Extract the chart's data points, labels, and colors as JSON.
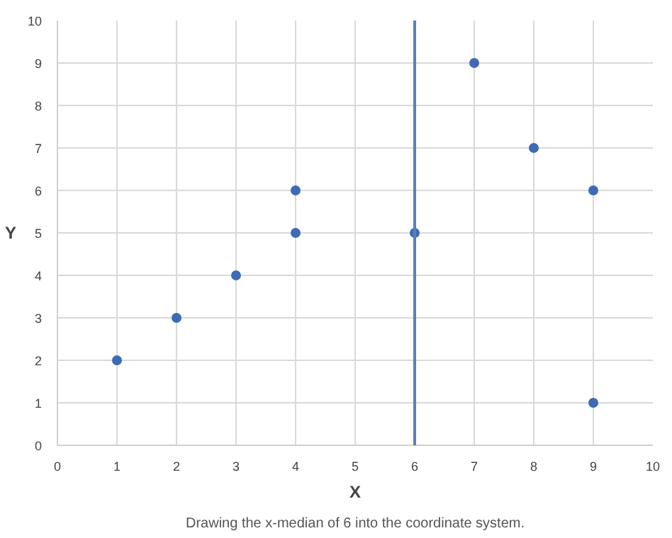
{
  "chart_data": {
    "type": "scatter",
    "xlabel": "X",
    "ylabel": "Y",
    "x": [
      1,
      2,
      3,
      4,
      4,
      6,
      7,
      8,
      9,
      9
    ],
    "series": [
      {
        "color": "#3e6bb5",
        "values": [
          2,
          3,
          4,
          5,
          6,
          5,
          9,
          7,
          6,
          1
        ]
      }
    ],
    "xlim": [
      0,
      10
    ],
    "ylim": [
      0,
      10
    ],
    "xticks": [
      0,
      1,
      2,
      3,
      4,
      5,
      6,
      7,
      8,
      9,
      10
    ],
    "yticks": [
      0,
      1,
      2,
      3,
      4,
      5,
      6,
      7,
      8,
      9,
      10
    ],
    "grid": true,
    "marker": "circle",
    "ref_lines": [
      {
        "axis": "x",
        "value": 6,
        "color": "#5b80b8"
      }
    ],
    "annotations": [
      "Drawing the x-median of 6 into the coordinate system."
    ]
  }
}
